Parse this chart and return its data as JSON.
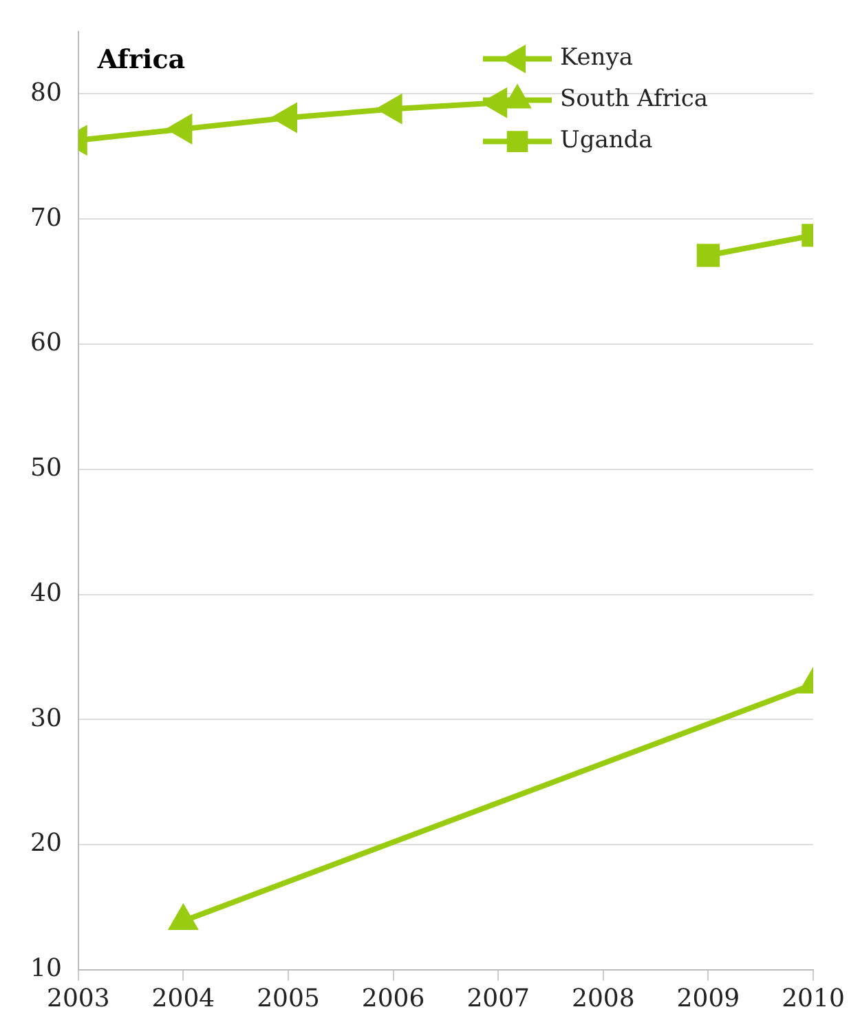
{
  "chart_data": {
    "type": "line",
    "title": "Africa",
    "x": [
      2003,
      2004,
      2005,
      2006,
      2007,
      2008,
      2009,
      2010
    ],
    "series": [
      {
        "name": "Kenya",
        "color": "#99cc11",
        "marker": "triangle",
        "values": [
          76.3,
          77.2,
          78.1,
          78.8,
          79.3,
          null,
          null,
          null
        ]
      },
      {
        "name": "South Africa",
        "color": "#99cc11",
        "marker": "triangle",
        "values": [
          null,
          13.9,
          null,
          null,
          null,
          null,
          null,
          32.8
        ]
      },
      {
        "name": "Uganda",
        "color": "#99cc11",
        "marker": "square",
        "values": [
          null,
          null,
          null,
          null,
          null,
          null,
          67.1,
          68.7
        ]
      }
    ],
    "xlim": [
      2003,
      2010
    ],
    "xticks": [
      2003,
      2004,
      2005,
      2006,
      2007,
      2008,
      2009,
      2010
    ],
    "ylim": [
      10,
      85
    ],
    "yticks": [
      10,
      20,
      30,
      40,
      50,
      60,
      70,
      80
    ],
    "grid": "y",
    "legend": "top right"
  }
}
